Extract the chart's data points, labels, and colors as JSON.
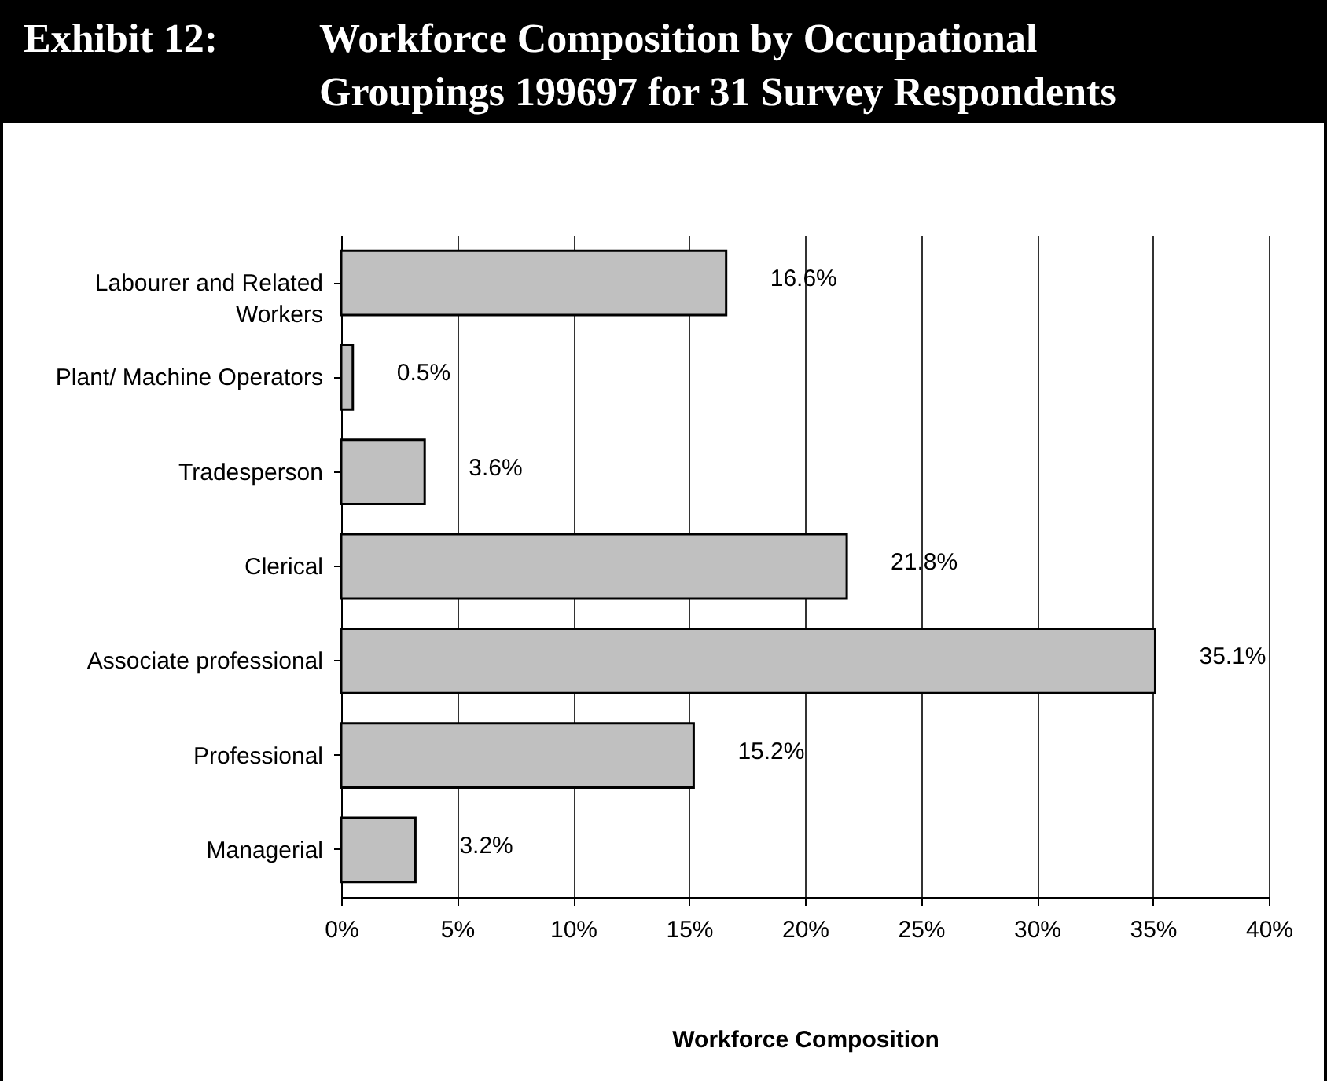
{
  "chart_data": {
    "type": "bar",
    "orientation": "horizontal",
    "title": "Exhibit 12: Workforce Composition by Occupational Groupings 199697 for 31 Survey Respondents",
    "xlabel": "Workforce Composition",
    "categories": [
      "Labourer and Related Workers",
      "Plant/ Machine Operators",
      "Tradesperson",
      "Clerical",
      "Associate professional",
      "Professional",
      "Managerial"
    ],
    "values": [
      16.6,
      0.5,
      3.6,
      21.8,
      35.1,
      15.2,
      3.2
    ],
    "value_labels": [
      "16.6%",
      "0.5%",
      "3.6%",
      "21.8%",
      "35.1%",
      "15.2%",
      "3.2%"
    ],
    "color": "#c0c0c0",
    "xlim": [
      0,
      40
    ],
    "xticks": [
      {
        "value": 0,
        "label": "0%"
      },
      {
        "value": 5,
        "label": "5%"
      },
      {
        "value": 10,
        "label": "10%"
      },
      {
        "value": 15,
        "label": "15%"
      },
      {
        "value": 20,
        "label": "20%"
      },
      {
        "value": 25,
        "label": "25%"
      },
      {
        "value": 30,
        "label": "30%"
      },
      {
        "value": 35,
        "label": "35%"
      },
      {
        "value": 40,
        "label": "40%"
      }
    ],
    "grid": "x"
  }
}
